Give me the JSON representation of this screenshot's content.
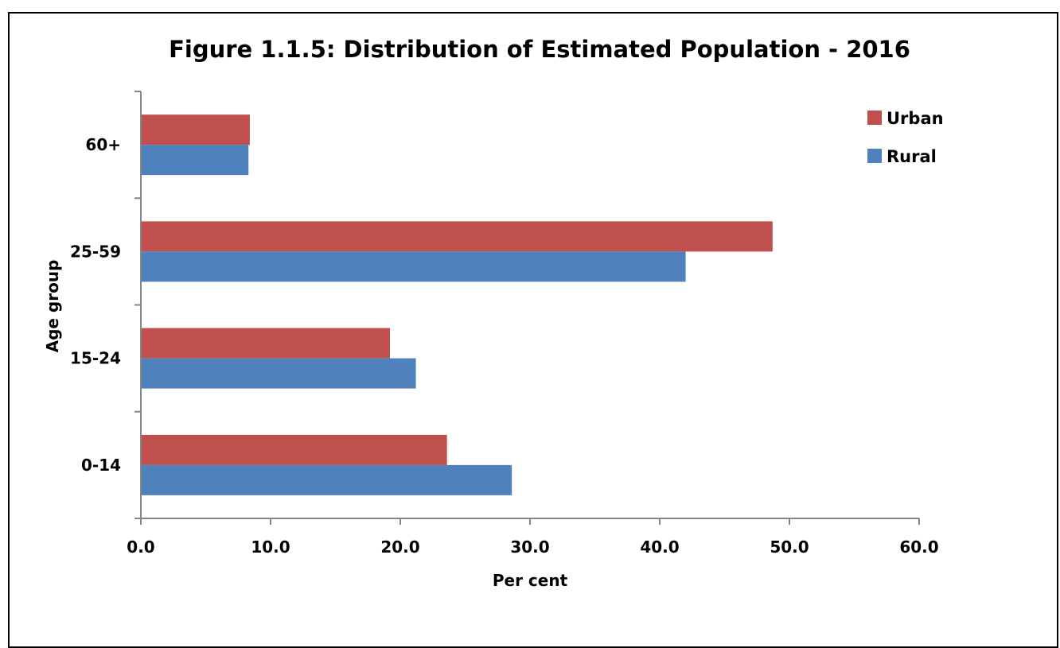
{
  "chart_data": {
    "type": "bar",
    "orientation": "horizontal",
    "title": "Figure 1.1.5: Distribution of Estimated Population - 2016",
    "xlabel": "Per cent",
    "ylabel": "Age group",
    "categories": [
      "0-14",
      "15-24",
      "25-59",
      "60+"
    ],
    "series": [
      {
        "name": "Rural",
        "color": "#4F81BD",
        "values": [
          28.6,
          21.2,
          42.0,
          8.3
        ]
      },
      {
        "name": "Urban",
        "color": "#C0504D",
        "values": [
          23.6,
          19.2,
          48.7,
          8.4
        ]
      }
    ],
    "xlim": [
      0,
      60
    ],
    "xticks": [
      "0.0",
      "10.0",
      "20.0",
      "30.0",
      "40.0",
      "50.0",
      "60.0"
    ],
    "grid": false,
    "legend": {
      "position": "top-right",
      "order": [
        "Urban",
        "Rural"
      ]
    }
  }
}
